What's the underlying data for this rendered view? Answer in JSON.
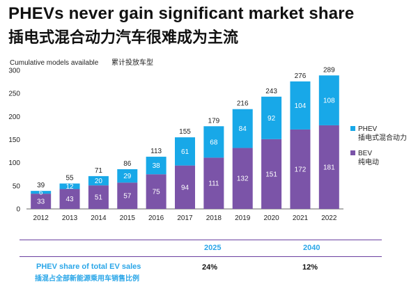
{
  "title_en": "PHEVs never gain significant market share",
  "title_zh": "插电式混合动力汽车很难成为主流",
  "chart_data": {
    "type": "bar",
    "stacked": true,
    "title": "",
    "ylabel": "Cumulative models available",
    "ylabel_zh": "累计投放车型",
    "xlabel": "",
    "ylim": [
      0,
      300
    ],
    "yticks": [
      0,
      50,
      100,
      150,
      200,
      250,
      300
    ],
    "categories": [
      "2012",
      "2013",
      "2014",
      "2015",
      "2016",
      "2017",
      "2018",
      "2019",
      "2020",
      "2021",
      "2022"
    ],
    "series": [
      {
        "name": "BEV",
        "name_zh": "纯电动",
        "color": "#7b54a8",
        "values": [
          33,
          43,
          51,
          57,
          75,
          94,
          111,
          132,
          151,
          172,
          181
        ]
      },
      {
        "name": "PHEV",
        "name_zh": "插电式混合动力",
        "color": "#18a8e8",
        "values": [
          6,
          12,
          20,
          29,
          38,
          61,
          68,
          84,
          92,
          104,
          108
        ]
      }
    ],
    "totals": [
      39,
      55,
      71,
      86,
      113,
      155,
      179,
      216,
      243,
      276,
      289
    ],
    "legend_position": "right",
    "grid": false
  },
  "phev_share_table": {
    "years": [
      "2025",
      "2040"
    ],
    "row_label_en": "PHEV share of total EV sales",
    "row_label_zh": "插混占全部新能源乘用车销售比例",
    "values": [
      "24%",
      "12%"
    ],
    "header_color": "#2aa6e8",
    "rule_color": "#6a3fa0"
  }
}
